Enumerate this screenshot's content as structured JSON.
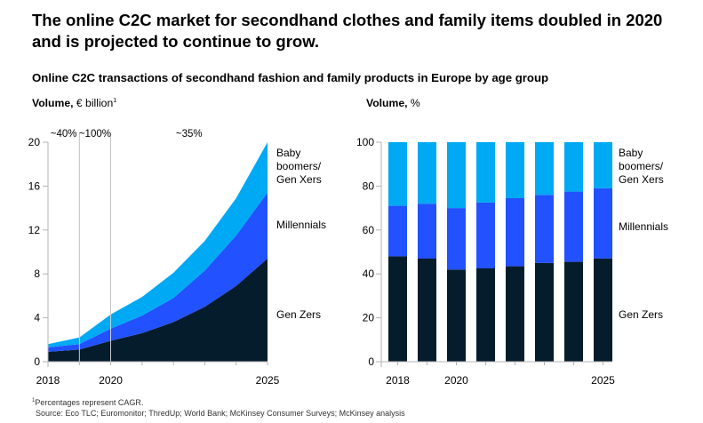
{
  "headline": "The online C2C market for secondhand clothes and family items doubled in 2020 and is projected to continue to grow.",
  "subtitle": "Online C2C transactions of secondhand fashion and family products in Europe by age group",
  "colors": {
    "gen_zers": "#051c2c",
    "millennials": "#2251ff",
    "boomers_gen_xers": "#00a9f4",
    "axis": "#b3b3b3",
    "text": "#000000"
  },
  "chart_data": [
    {
      "type": "area",
      "stacked": true,
      "ylabel_bold": "Volume,",
      "ylabel_unit": "€ billion",
      "ylabel_sup": "1",
      "x": [
        2018,
        2019,
        2020,
        2021,
        2022,
        2023,
        2024,
        2025
      ],
      "x_tick_labels": [
        "2018",
        "2020",
        "2025"
      ],
      "x_tick_values": [
        2018,
        2020,
        2025
      ],
      "ylim": [
        0,
        20
      ],
      "y_ticks": [
        0,
        4,
        8,
        12,
        16,
        20
      ],
      "grid": false,
      "series": [
        {
          "name": "Gen Zers",
          "values": [
            0.9,
            1.1,
            1.9,
            2.6,
            3.6,
            5.0,
            6.9,
            9.4
          ]
        },
        {
          "name": "Millennials",
          "values": [
            0.4,
            0.5,
            1.1,
            1.6,
            2.2,
            3.3,
            4.6,
            6.0
          ]
        },
        {
          "name": "Baby boomers/ Gen Xers",
          "values": [
            0.3,
            0.6,
            1.3,
            1.7,
            2.3,
            2.7,
            3.4,
            4.6
          ]
        }
      ],
      "series_labels": [
        {
          "series": "Baby boomers/ Gen Xers",
          "lines": [
            "Baby",
            "boomers/",
            "Gen Xers"
          ]
        },
        {
          "series": "Millennials",
          "lines": [
            "Millennials"
          ]
        },
        {
          "series": "Gen Zers",
          "lines": [
            "Gen Zers"
          ]
        }
      ],
      "period_dividers": [
        2019,
        2020
      ],
      "cagr_annotations": [
        {
          "text": "~40%",
          "x_from": 2018,
          "x_to": 2019
        },
        {
          "text": "~100%",
          "x_from": 2019,
          "x_to": 2020
        },
        {
          "text": "~35%",
          "x_from": 2020,
          "x_to": 2025
        }
      ]
    },
    {
      "type": "bar",
      "stacked": true,
      "ylabel_bold": "Volume,",
      "ylabel_unit": "%",
      "categories": [
        "2018",
        "2019",
        "2020",
        "2021",
        "2022",
        "2023",
        "2024",
        "2025"
      ],
      "x_tick_labels": [
        "2018",
        "",
        "2020",
        "",
        "",
        "",
        "",
        "2025"
      ],
      "ylim": [
        0,
        100
      ],
      "y_ticks": [
        0,
        20,
        40,
        60,
        80,
        100
      ],
      "grid": false,
      "series": [
        {
          "name": "Gen Zers",
          "values": [
            48,
            47,
            42,
            42.5,
            43.5,
            45,
            45.5,
            47
          ]
        },
        {
          "name": "Millennials",
          "values": [
            23,
            25,
            28,
            30,
            31,
            31,
            32,
            32
          ]
        },
        {
          "name": "Baby boomers/ Gen Xers",
          "values": [
            29,
            28,
            30,
            27.5,
            25.5,
            24,
            22.5,
            21
          ]
        }
      ],
      "series_labels": [
        {
          "series": "Baby boomers/ Gen Xers",
          "lines": [
            "Baby",
            "boomers/",
            "Gen Xers"
          ]
        },
        {
          "series": "Millennials",
          "lines": [
            "Millennials"
          ]
        },
        {
          "series": "Gen Zers",
          "lines": [
            "Gen Zers"
          ]
        }
      ]
    }
  ],
  "footnotes": {
    "note_sup": "1",
    "note": "Percentages represent CAGR.",
    "source": "Source: Eco TLC; Euromonitor; ThredUp; World Bank; McKinsey Consumer Surveys; McKinsey analysis"
  }
}
